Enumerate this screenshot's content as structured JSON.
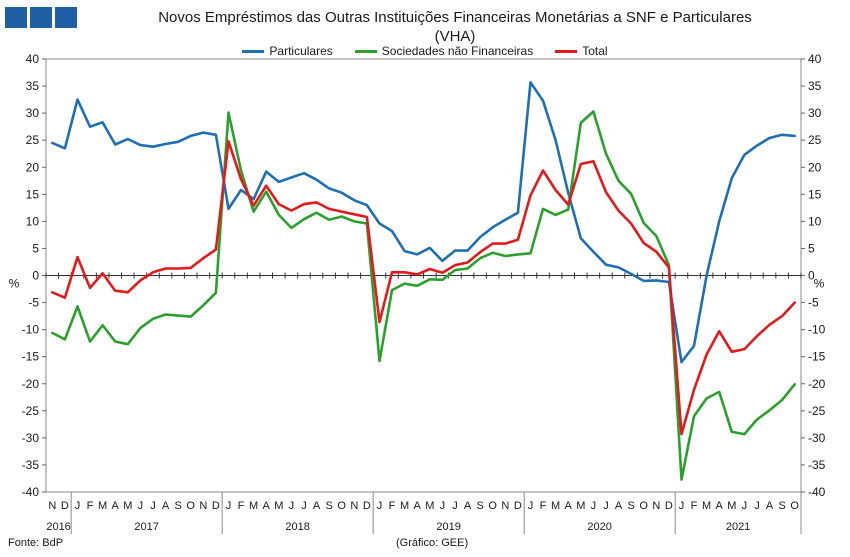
{
  "title_line1": "Novos Empréstimos das Outras Instituições Financeiras Monetárias a SNF e Particulares",
  "title_line2": "(VHA)",
  "legend": [
    {
      "label": "Particulares",
      "color": "#1f6fb4"
    },
    {
      "label": "Sociedades não Financeiras",
      "color": "#2ca02c"
    },
    {
      "label": "Total",
      "color": "#e31a1c"
    }
  ],
  "footer_left": "Fonte: BdP",
  "footer_center": "(Gráfico: GEE)",
  "chart_data": {
    "type": "line",
    "ylabel_left": "%",
    "ylabel_right": "%",
    "ylim": [
      -40,
      40
    ],
    "yticks": [
      -40,
      -35,
      -30,
      -25,
      -20,
      -15,
      -10,
      -5,
      0,
      5,
      10,
      15,
      20,
      25,
      30,
      35,
      40
    ],
    "grid": false,
    "legend_position": "top",
    "x": [
      "N",
      "D",
      "J",
      "F",
      "M",
      "A",
      "M",
      "J",
      "J",
      "A",
      "S",
      "O",
      "N",
      "D",
      "J",
      "F",
      "M",
      "A",
      "M",
      "J",
      "J",
      "A",
      "S",
      "O",
      "N",
      "D",
      "J",
      "F",
      "M",
      "A",
      "M",
      "J",
      "J",
      "A",
      "S",
      "O",
      "N",
      "D",
      "J",
      "F",
      "M",
      "A",
      "M",
      "J",
      "J",
      "A",
      "S",
      "O",
      "N",
      "D",
      "J",
      "F",
      "M",
      "A",
      "M",
      "J",
      "J",
      "A",
      "S",
      "O"
    ],
    "years": [
      {
        "label": "2016",
        "start": 0,
        "end": 1
      },
      {
        "label": "2017",
        "start": 2,
        "end": 13
      },
      {
        "label": "2018",
        "start": 14,
        "end": 25
      },
      {
        "label": "2019",
        "start": 26,
        "end": 37
      },
      {
        "label": "2020",
        "start": 38,
        "end": 49
      },
      {
        "label": "2021",
        "start": 50,
        "end": 59
      }
    ],
    "series": [
      {
        "name": "Particulares",
        "color": "#1f6fb4",
        "values": [
          24.5,
          23.5,
          32.5,
          27.5,
          28.3,
          24.2,
          25.2,
          24.1,
          23.8,
          24.3,
          24.7,
          25.8,
          26.4,
          26.0,
          12.3,
          15.8,
          14.1,
          19.2,
          17.3,
          18.1,
          18.9,
          17.7,
          16.1,
          15.3,
          13.9,
          13.0,
          9.6,
          8.2,
          4.5,
          3.9,
          5.1,
          2.7,
          4.6,
          4.6,
          7.1,
          8.9,
          10.3,
          11.6,
          35.7,
          32.3,
          25.0,
          15.3,
          6.9,
          4.4,
          2.0,
          1.5,
          0.3,
          -1.0,
          -0.9,
          -1.2,
          -16.0,
          -13.0,
          0.0,
          10.0,
          18.0,
          22.3,
          24.0,
          25.4,
          26.0,
          25.8
        ]
      },
      {
        "name": "Sociedades não Financeiras",
        "color": "#2ca02c",
        "values": [
          -10.6,
          -11.8,
          -5.7,
          -12.2,
          -9.2,
          -12.2,
          -12.7,
          -9.7,
          -8.0,
          -7.2,
          -7.4,
          -7.6,
          -5.5,
          -3.2,
          30.1,
          19.4,
          11.8,
          15.5,
          11.2,
          8.8,
          10.4,
          11.6,
          10.3,
          10.9,
          10.0,
          9.6,
          -15.8,
          -2.7,
          -1.5,
          -1.9,
          -0.7,
          -0.8,
          1.0,
          1.3,
          3.2,
          4.2,
          3.6,
          3.9,
          4.1,
          12.3,
          11.2,
          12.2,
          28.2,
          30.3,
          22.5,
          17.5,
          15.1,
          9.7,
          7.3,
          1.9,
          -37.7,
          -26.0,
          -22.7,
          -21.5,
          -28.9,
          -29.3,
          -26.6,
          -24.9,
          -23.0,
          -20.1
        ]
      },
      {
        "name": "Total",
        "color": "#e31a1c",
        "values": [
          -3.1,
          -4.1,
          3.4,
          -2.3,
          0.4,
          -2.8,
          -3.1,
          -0.9,
          0.6,
          1.3,
          1.3,
          1.4,
          3.2,
          4.8,
          24.8,
          17.8,
          12.9,
          16.6,
          13.2,
          12.0,
          13.2,
          13.5,
          12.3,
          11.8,
          11.3,
          10.8,
          -8.6,
          0.6,
          0.6,
          0.2,
          1.2,
          0.5,
          1.9,
          2.4,
          4.3,
          5.9,
          5.9,
          6.6,
          14.8,
          19.4,
          15.8,
          13.1,
          20.6,
          21.1,
          15.4,
          12.0,
          9.6,
          6.0,
          4.4,
          1.5,
          -29.3,
          -21.1,
          -14.6,
          -10.3,
          -14.1,
          -13.6,
          -11.2,
          -9.1,
          -7.5,
          -5.0
        ]
      }
    ]
  }
}
